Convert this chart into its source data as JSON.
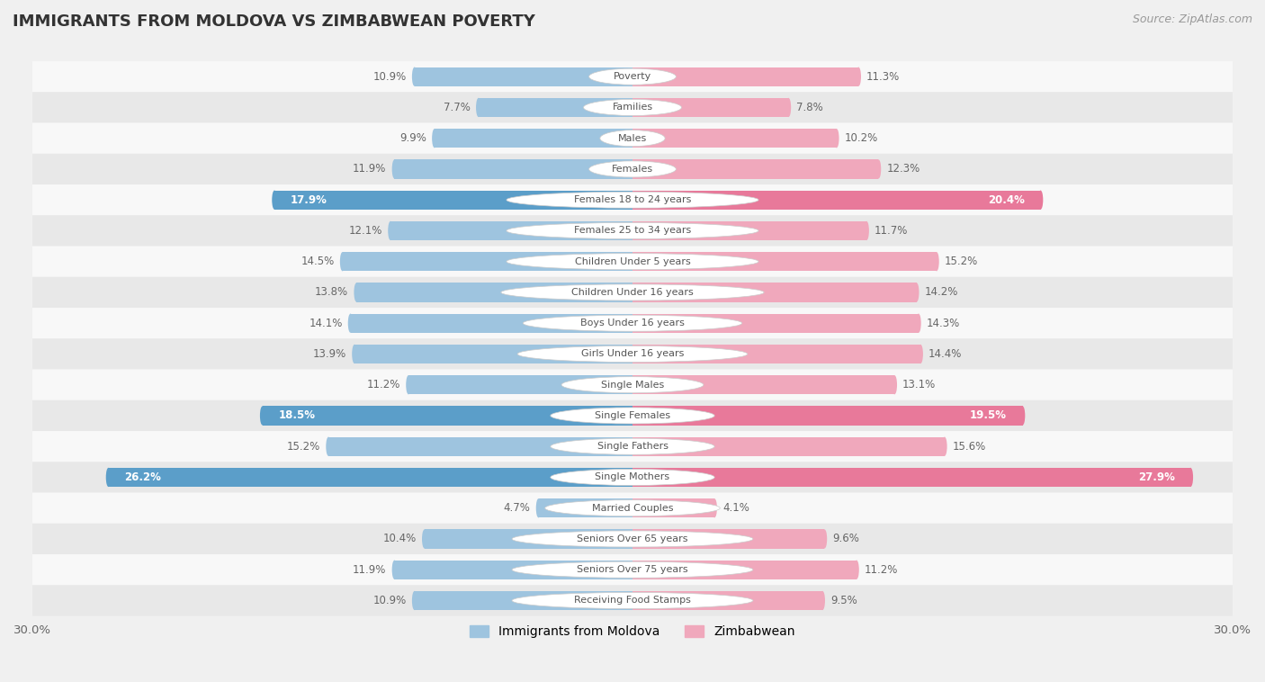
{
  "title": "IMMIGRANTS FROM MOLDOVA VS ZIMBABWEAN POVERTY",
  "source": "Source: ZipAtlas.com",
  "categories": [
    "Poverty",
    "Families",
    "Males",
    "Females",
    "Females 18 to 24 years",
    "Females 25 to 34 years",
    "Children Under 5 years",
    "Children Under 16 years",
    "Boys Under 16 years",
    "Girls Under 16 years",
    "Single Males",
    "Single Females",
    "Single Fathers",
    "Single Mothers",
    "Married Couples",
    "Seniors Over 65 years",
    "Seniors Over 75 years",
    "Receiving Food Stamps"
  ],
  "moldova_values": [
    10.9,
    7.7,
    9.9,
    11.9,
    17.9,
    12.1,
    14.5,
    13.8,
    14.1,
    13.9,
    11.2,
    18.5,
    15.2,
    26.2,
    4.7,
    10.4,
    11.9,
    10.9
  ],
  "zimbabwe_values": [
    11.3,
    7.8,
    10.2,
    12.3,
    20.4,
    11.7,
    15.2,
    14.2,
    14.3,
    14.4,
    13.1,
    19.5,
    15.6,
    27.9,
    4.1,
    9.6,
    11.2,
    9.5
  ],
  "moldova_color": "#9ec4df",
  "zimbabwe_color": "#f0a8bc",
  "moldova_highlight_color": "#5b9ec9",
  "zimbabwe_highlight_color": "#e8799a",
  "highlight_rows": [
    4,
    11,
    13
  ],
  "axis_max": 30.0,
  "bar_height": 0.62,
  "background_color": "#f0f0f0",
  "row_colors_odd": "#f8f8f8",
  "row_colors_even": "#e8e8e8",
  "label_color_dark": "#666666",
  "label_color_light": "#ffffff",
  "legend_label_moldova": "Immigrants from Moldova",
  "legend_label_zimbabwe": "Zimbabwean"
}
